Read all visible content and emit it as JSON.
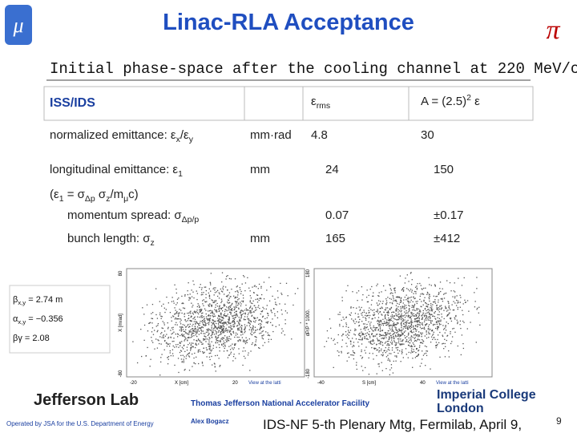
{
  "header": {
    "title": "Linac-RLA  Acceptance",
    "subtitle": "Initial phase-space after the cooling channel at 220 MeV/c"
  },
  "table": {
    "head": {
      "label": "ISS/IDS",
      "rms": [
        "ε",
        "rms"
      ],
      "acceptance": [
        "A = (2.5)",
        "2",
        " ε"
      ]
    },
    "rows": [
      {
        "label": [
          "normalized emittance: ε",
          "x",
          "/ε",
          "y"
        ],
        "unit": "mm·rad",
        "rms": "4.8",
        "acceptance": "30"
      },
      {
        "label": [
          "longitudinal emittance: ε",
          "1"
        ],
        "unit": "mm",
        "rms": "24",
        "acceptance": "150"
      },
      {
        "label": [
          "(ε",
          "1",
          "  = σ",
          "Δp",
          " σ",
          "z",
          "/m",
          "μ",
          "c)"
        ]
      },
      {
        "label": [
          "momentum spread: σ",
          "Δp/p"
        ],
        "rms": "0.07",
        "acceptance": "±0.17"
      },
      {
        "label": [
          "bunch length: σ",
          "z"
        ],
        "unit": "mm",
        "rms": "165",
        "acceptance": "±412"
      }
    ]
  },
  "twiss": [
    [
      "β",
      "x,y",
      " = 2.74 m"
    ],
    [
      "α",
      "x,y",
      " = −0.356"
    ],
    [
      "βγ = 2.08"
    ]
  ],
  "plots": [
    {
      "ylabel": "X [mrad]",
      "xlabel": "X [cm]",
      "note": "View at the latti",
      "ytop": "80",
      "ybottom": "-80",
      "xleft": "-20",
      "xright": "20"
    },
    {
      "ylabel": "dP/P * 1000.",
      "xlabel": "S [cm]",
      "note": "View at the latti",
      "ytop": "180",
      "ybottom": "-180",
      "xleft": "-40",
      "xright": "40"
    }
  ],
  "footer": {
    "lab": "Jefferson Lab",
    "facility": "Thomas Jefferson National Accelerator Facility",
    "operated": "Operated by JSA for the U.S. Department of Energy",
    "author": "Alex Bogacz",
    "meeting": "IDS-NF 5-th Plenary Mtg, Fermilab, April 9,",
    "page": "9",
    "college": [
      "Imperial College",
      "London"
    ]
  }
}
